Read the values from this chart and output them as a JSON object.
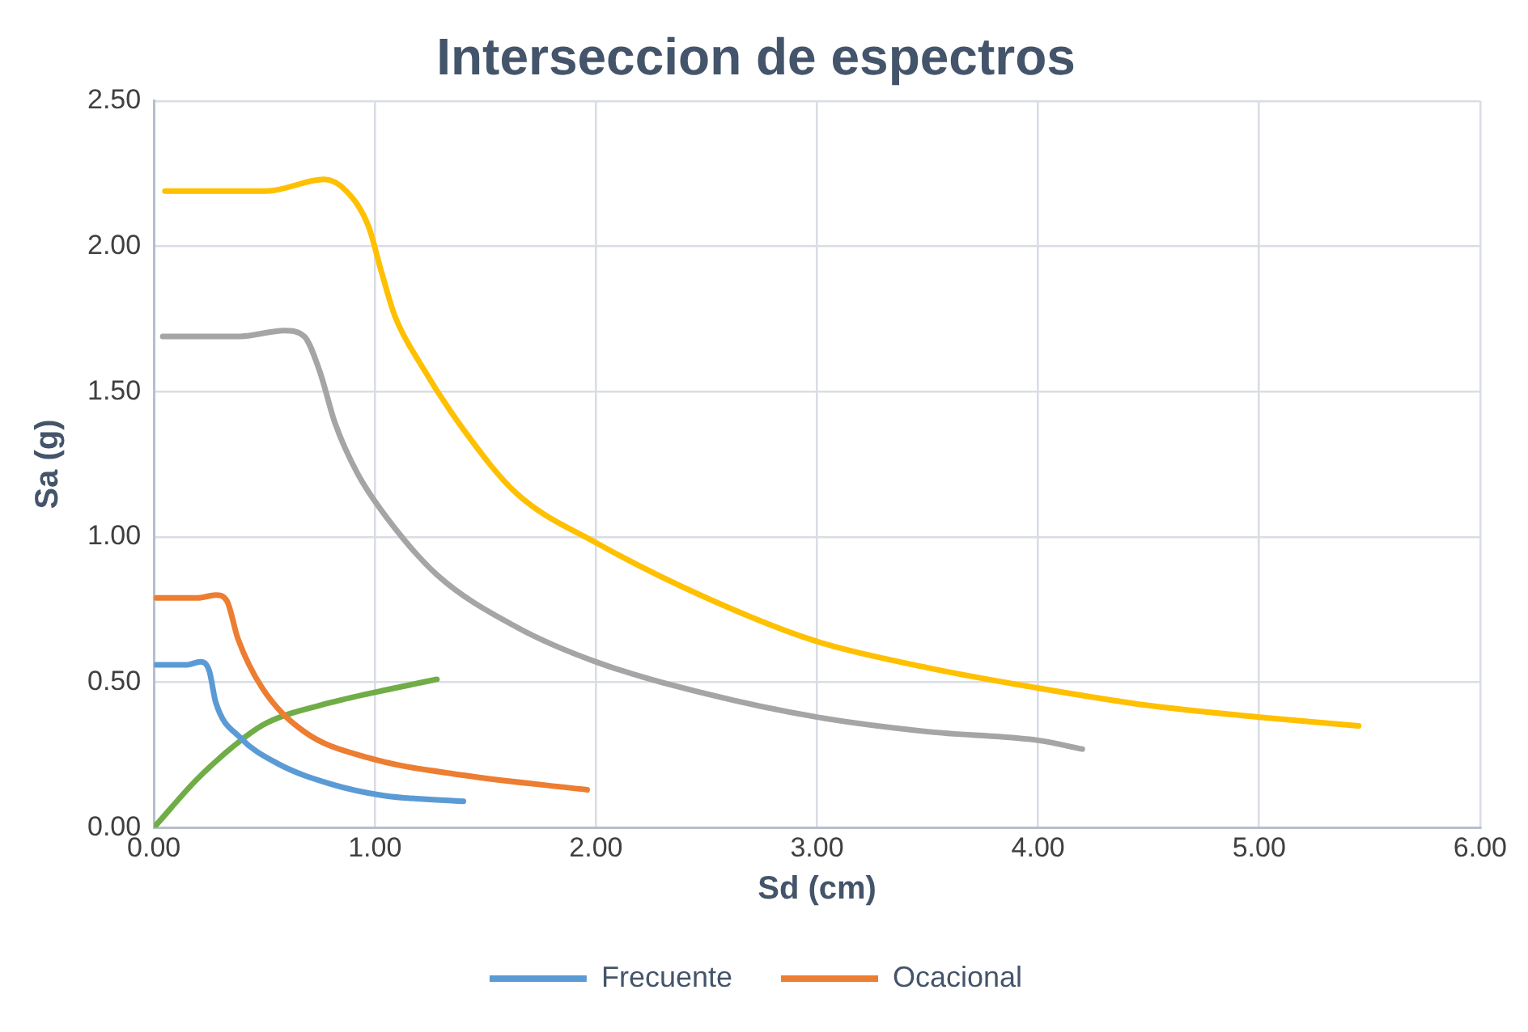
{
  "chart_data": {
    "type": "line",
    "title": "Interseccion de espectros",
    "xlabel": "Sd (cm)",
    "ylabel": "Sa (g)",
    "xlim": [
      0,
      6
    ],
    "xticks": [
      {
        "value": 0,
        "label": "0.00"
      },
      {
        "value": 1,
        "label": "1.00"
      },
      {
        "value": 2,
        "label": "2.00"
      },
      {
        "value": 3,
        "label": "3.00"
      },
      {
        "value": 4,
        "label": "4.00"
      },
      {
        "value": 5,
        "label": "5.00"
      },
      {
        "value": 6,
        "label": "6.00"
      }
    ],
    "ylim": [
      0,
      2.5
    ],
    "yticks": [
      {
        "value": 0,
        "label": "0.00"
      },
      {
        "value": 0.5,
        "label": "0.50"
      },
      {
        "value": 1,
        "label": "1.00"
      },
      {
        "value": 1.5,
        "label": "1.50"
      },
      {
        "value": 2,
        "label": "2.00"
      },
      {
        "value": 2.5,
        "label": "2.50"
      }
    ],
    "grid": true,
    "legend": "bottom",
    "marker": "none",
    "line_style": "solid",
    "series": [
      {
        "name": "Frecuente",
        "color": "#5b9bd5",
        "x": [
          0.01,
          0.15,
          0.21,
          0.25,
          0.28,
          0.39,
          0.56,
          0.8,
          1.04,
          1.4
        ],
        "values": [
          0.56,
          0.56,
          0.57,
          0.54,
          0.43,
          0.31,
          0.22,
          0.15,
          0.11,
          0.09
        ]
      },
      {
        "name": "Ocacional",
        "color": "#ed7d31",
        "x": [
          0.01,
          0.2,
          0.28,
          0.33,
          0.38,
          0.49,
          0.68,
          0.97,
          1.4,
          1.96
        ],
        "values": [
          0.79,
          0.79,
          0.8,
          0.78,
          0.65,
          0.48,
          0.33,
          0.24,
          0.18,
          0.13
        ]
      },
      {
        "color": "#a5a5a5",
        "x": [
          0.04,
          0.39,
          0.59,
          0.68,
          0.75,
          0.82,
          0.92,
          1.06,
          1.28,
          1.64,
          2.0,
          2.5,
          3.0,
          3.5,
          4.0,
          4.2
        ],
        "values": [
          1.69,
          1.69,
          1.71,
          1.69,
          1.57,
          1.39,
          1.22,
          1.06,
          0.87,
          0.69,
          0.57,
          0.46,
          0.38,
          0.33,
          0.3,
          0.27
        ]
      },
      {
        "color": "#ffc000",
        "x": [
          0.05,
          0.51,
          0.77,
          0.87,
          0.97,
          1.03,
          1.09,
          1.21,
          1.4,
          1.64,
          2.0,
          2.5,
          3.0,
          3.5,
          4.0,
          4.5,
          5.0,
          5.45
        ],
        "values": [
          2.19,
          2.19,
          2.23,
          2.19,
          2.07,
          1.91,
          1.76,
          1.59,
          1.37,
          1.15,
          0.98,
          0.79,
          0.64,
          0.55,
          0.48,
          0.42,
          0.38,
          0.35
        ]
      },
      {
        "color": "#70ad47",
        "x": [
          0,
          0.2,
          0.41,
          0.51,
          0.8,
          1.09,
          1.28
        ],
        "values": [
          0,
          0.17,
          0.31,
          0.36,
          0.43,
          0.48,
          0.51
        ]
      }
    ]
  }
}
